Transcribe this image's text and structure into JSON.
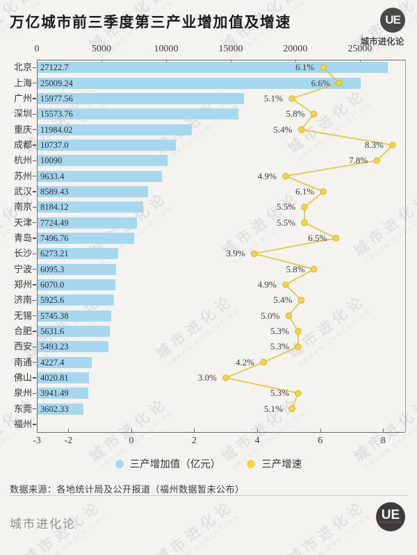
{
  "title": "万亿城市前三季度第三产业增加值及增速",
  "header_logo": {
    "text": "UE",
    "caption": "城市进化论"
  },
  "watermark": {
    "line1": "城市进化论",
    "line2": "URBAN EVOLUTION"
  },
  "chart_data": {
    "type": "bar",
    "orientation": "horizontal",
    "categories": [
      "北京",
      "上海",
      "广州",
      "深圳",
      "重庆",
      "成都",
      "杭州",
      "苏州",
      "武汉",
      "南京",
      "天津",
      "青岛",
      "长沙",
      "宁波",
      "郑州",
      "济南",
      "无锡",
      "合肥",
      "西安",
      "南通",
      "佛山",
      "泉州",
      "东莞",
      "福州"
    ],
    "series": [
      {
        "name": "三产增加值（亿元）",
        "type": "bar",
        "color": "#a6d7ef",
        "values": [
          27122.7,
          25009.24,
          15977.56,
          15573.76,
          11984.02,
          10737.0,
          10090,
          9633.4,
          8589.43,
          8184.12,
          7724.49,
          7496.76,
          6273.21,
          6095.3,
          6070.0,
          5925.6,
          5745.38,
          5631.6,
          5493.23,
          4227.4,
          4020.81,
          3941.49,
          3602.33,
          null
        ],
        "value_labels": [
          "27122.7",
          "25009.24",
          "15977.56",
          "15573.76",
          "11984.02",
          "10737.0",
          "10090",
          "9633.4",
          "8589.43",
          "8184.12",
          "7724.49",
          "7496.76",
          "6273.21",
          "6095.3",
          "6070.0",
          "5925.6",
          "5745.38",
          "5631.6",
          "5493.23",
          "4227.4",
          "4020.81",
          "3941.49",
          "3602.33",
          ""
        ]
      },
      {
        "name": "三产增速",
        "type": "line",
        "color": "#e3c33c",
        "marker_color": "#f3d44a",
        "marker_edge": "#d2b02e",
        "values": [
          6.1,
          6.6,
          5.1,
          5.8,
          5.4,
          8.3,
          7.8,
          4.9,
          6.1,
          5.5,
          5.5,
          6.5,
          3.9,
          5.8,
          4.9,
          5.4,
          5.0,
          5.3,
          5.3,
          4.2,
          3.0,
          5.3,
          5.1,
          null
        ],
        "value_labels": [
          "6.1%",
          "6.6%",
          "5.1%",
          "5.8%",
          "5.4%",
          "8.3%",
          "7.8%",
          "4.9%",
          "6.1%",
          "5.5%",
          "5.5%",
          "6.5%",
          "3.9%",
          "5.8%",
          "4.9%",
          "5.4%",
          "5.0%",
          "5.3%",
          "5.3%",
          "4.2%",
          "3.0%",
          "5.3%",
          "5.1%",
          ""
        ]
      }
    ],
    "top_axis": {
      "range": [
        0,
        28500
      ],
      "ticks": [
        0,
        5000,
        10000,
        15000,
        20000,
        25000
      ],
      "tick_labels": [
        "0",
        "5000",
        "10000",
        "15000",
        "20000",
        "25000"
      ]
    },
    "bottom_axis": {
      "range": [
        -3,
        8.7
      ],
      "ticks": [
        -3,
        -2,
        0,
        2,
        4,
        6,
        8
      ],
      "tick_labels": [
        "-3",
        "-2",
        "0",
        "2",
        "4",
        "6",
        "8"
      ]
    },
    "grid": false,
    "legend_position": "bottom"
  },
  "legend": [
    {
      "label": "三产增加值（亿元）",
      "color": "#a6d7ef"
    },
    {
      "label": "三产增速",
      "color": "#f3d44a"
    }
  ],
  "source_note": "数据来源：各地统计局及公开报道（福州数据暂未公布）",
  "footer": {
    "brand": "城市进化论",
    "logo_text": "UE",
    "logo_sub": "EVOLUTION"
  }
}
